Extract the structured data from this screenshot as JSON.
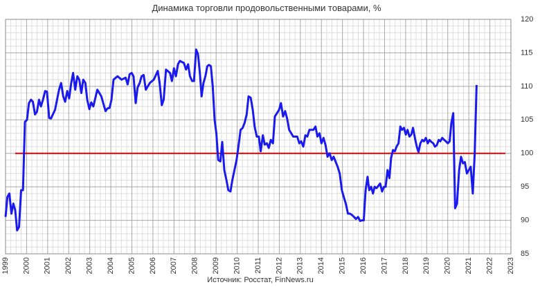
{
  "chart_data": {
    "type": "line",
    "title": "Динамика торговли продовольственными товарами, %",
    "source": "Источник: Росстат, FinNews.ru",
    "xlim": [
      1999,
      2023
    ],
    "xticks": [
      1999,
      2000,
      2001,
      2002,
      2003,
      2004,
      2005,
      2006,
      2007,
      2008,
      2009,
      2010,
      2011,
      2012,
      2013,
      2014,
      2015,
      2016,
      2017,
      2018,
      2019,
      2020,
      2021,
      2022,
      2023
    ],
    "ylim": [
      85,
      120
    ],
    "yticks": [
      85,
      90,
      95,
      100,
      105,
      110,
      115,
      120
    ],
    "grid": true,
    "reference_line": {
      "value": 100,
      "color": "#e00000"
    },
    "series": [
      {
        "name": "Динамика",
        "color": "#1a1aef",
        "x": [
          1999.0,
          1999.09,
          1999.18,
          1999.28,
          1999.37,
          1999.46,
          1999.55,
          1999.64,
          1999.74,
          1999.83,
          1999.92,
          2000.02,
          2000.11,
          2000.21,
          2000.3,
          2000.4,
          2000.49,
          2000.59,
          2000.68,
          2000.78,
          2000.88,
          2000.97,
          2001.07,
          2001.16,
          2001.35,
          2001.54,
          2001.64,
          2001.74,
          2001.83,
          2001.93,
          2002.02,
          2002.12,
          2002.21,
          2002.31,
          2002.41,
          2002.5,
          2002.6,
          2002.69,
          2002.79,
          2002.88,
          2002.98,
          2003.07,
          2003.17,
          2003.36,
          2003.55,
          2003.64,
          2003.75,
          2003.84,
          2003.94,
          2004.03,
          2004.13,
          2004.32,
          2004.51,
          2004.7,
          2004.8,
          2004.89,
          2004.99,
          2005.08,
          2005.18,
          2005.27,
          2005.37,
          2005.46,
          2005.56,
          2005.66,
          2005.85,
          2006.04,
          2006.23,
          2006.32,
          2006.42,
          2006.51,
          2006.62,
          2006.81,
          2006.9,
          2007.0,
          2007.09,
          2007.19,
          2007.28,
          2007.47,
          2007.57,
          2007.67,
          2007.76,
          2007.86,
          2007.95,
          2008.05,
          2008.14,
          2008.23,
          2008.31,
          2008.4,
          2008.49,
          2008.58,
          2008.66,
          2008.75,
          2008.84,
          2008.93,
          2009.01,
          2009.1,
          2009.2,
          2009.29,
          2009.39,
          2009.49,
          2009.58,
          2009.68,
          2009.77,
          2009.97,
          2010.06,
          2010.16,
          2010.26,
          2010.35,
          2010.45,
          2010.54,
          2010.64,
          2010.74,
          2010.83,
          2010.93,
          2011.03,
          2011.12,
          2011.22,
          2011.31,
          2011.41,
          2011.5,
          2011.6,
          2011.7,
          2011.79,
          2011.89,
          2011.99,
          2012.08,
          2012.18,
          2012.28,
          2012.37,
          2012.47,
          2012.66,
          2012.85,
          2012.95,
          2013.04,
          2013.14,
          2013.24,
          2013.33,
          2013.43,
          2013.62,
          2013.72,
          2013.81,
          2013.91,
          2014.0,
          2014.1,
          2014.2,
          2014.29,
          2014.39,
          2014.49,
          2014.58,
          2014.77,
          2014.87,
          2014.97,
          2015.06,
          2015.16,
          2015.26,
          2015.35,
          2015.45,
          2015.55,
          2015.64,
          2015.74,
          2015.84,
          2015.93,
          2016.01,
          2016.1,
          2016.19,
          2016.27,
          2016.36,
          2016.45,
          2016.53,
          2016.62,
          2016.79,
          2016.88,
          2016.97,
          2017.05,
          2017.14,
          2017.23,
          2017.31,
          2017.4,
          2017.49,
          2017.57,
          2017.66,
          2017.75,
          2017.83,
          2017.92,
          2018.01,
          2018.09,
          2018.18,
          2018.27,
          2018.35,
          2018.44,
          2018.53,
          2018.61,
          2018.7,
          2018.79,
          2018.87,
          2018.96,
          2019.05,
          2019.13,
          2019.22,
          2019.31,
          2019.39,
          2019.48,
          2019.57,
          2019.65,
          2019.74,
          2019.83,
          2019.91,
          2020.0,
          2020.09,
          2020.17,
          2020.26,
          2020.35,
          2020.44,
          2020.54,
          2020.63,
          2020.72,
          2020.81,
          2020.91,
          2021.0,
          2021.09,
          2021.19,
          2021.28,
          2021.37
        ],
        "values": [
          90.5,
          93.5,
          94,
          91,
          92.5,
          91.5,
          88.5,
          89,
          94.5,
          94.5,
          104.7,
          105,
          107.5,
          108,
          107.7,
          105.8,
          106.2,
          108,
          107,
          108,
          109.3,
          109.2,
          105.3,
          105.2,
          106.5,
          109.5,
          110.5,
          108.5,
          107.7,
          109.3,
          108.2,
          110.5,
          112,
          109.5,
          111.5,
          111,
          109,
          111,
          110.5,
          108,
          106.6,
          107.6,
          107,
          109.5,
          108.5,
          107.5,
          106.3,
          106.7,
          106.8,
          108,
          111,
          111.5,
          111,
          111.3,
          110.3,
          111.8,
          112,
          111.5,
          107.5,
          109.8,
          110.5,
          111.5,
          111.7,
          109.5,
          110.5,
          111,
          112.3,
          110.5,
          107.2,
          108,
          112.5,
          112,
          110.8,
          112.7,
          111.5,
          113.3,
          113.8,
          113.5,
          112.5,
          113.3,
          111.5,
          110.8,
          110.8,
          115.5,
          114.8,
          112,
          108.5,
          110.5,
          111.5,
          113,
          113.2,
          113,
          110,
          105,
          103,
          99,
          98.8,
          101.7,
          97.5,
          96,
          94.5,
          94.3,
          96,
          99,
          101,
          103.5,
          103.8,
          104.5,
          105.8,
          108.5,
          108.3,
          106.5,
          104,
          102.5,
          102.5,
          100.3,
          102.7,
          101.3,
          101.5,
          100.8,
          102,
          101.5,
          105.5,
          106,
          106.5,
          107.5,
          105.5,
          106.3,
          105.2,
          103.5,
          102.5,
          102.5,
          101.5,
          101.8,
          101,
          102.7,
          102.5,
          103.5,
          103.5,
          104,
          102.5,
          103,
          101.5,
          102.3,
          101.2,
          99.5,
          100,
          99,
          99.5,
          98,
          97,
          94.5,
          93.5,
          92.5,
          91,
          91,
          90.8,
          90.5,
          90.2,
          90.5,
          89.9,
          90,
          90,
          94.5,
          96.5,
          94.5,
          95,
          94,
          95,
          94.8,
          95.5,
          94.3,
          95,
          95,
          97.5,
          96.3,
          99.3,
          100.5,
          100.3,
          101,
          101.5,
          104,
          103.5,
          103.8,
          102.8,
          103.5,
          102.5,
          102.8,
          103.8,
          102.3,
          101,
          100.2,
          101.5,
          102,
          101.8,
          102.3,
          101.5,
          102,
          101.7,
          101.5,
          101,
          101.2,
          102,
          101.8,
          102.3,
          102,
          101.8,
          101.5,
          101.8,
          104.5,
          106,
          91.8,
          92.5,
          97.5,
          99.5,
          98.5,
          98.7,
          97,
          97.5,
          98,
          94,
          100,
          110.2
        ]
      }
    ]
  }
}
